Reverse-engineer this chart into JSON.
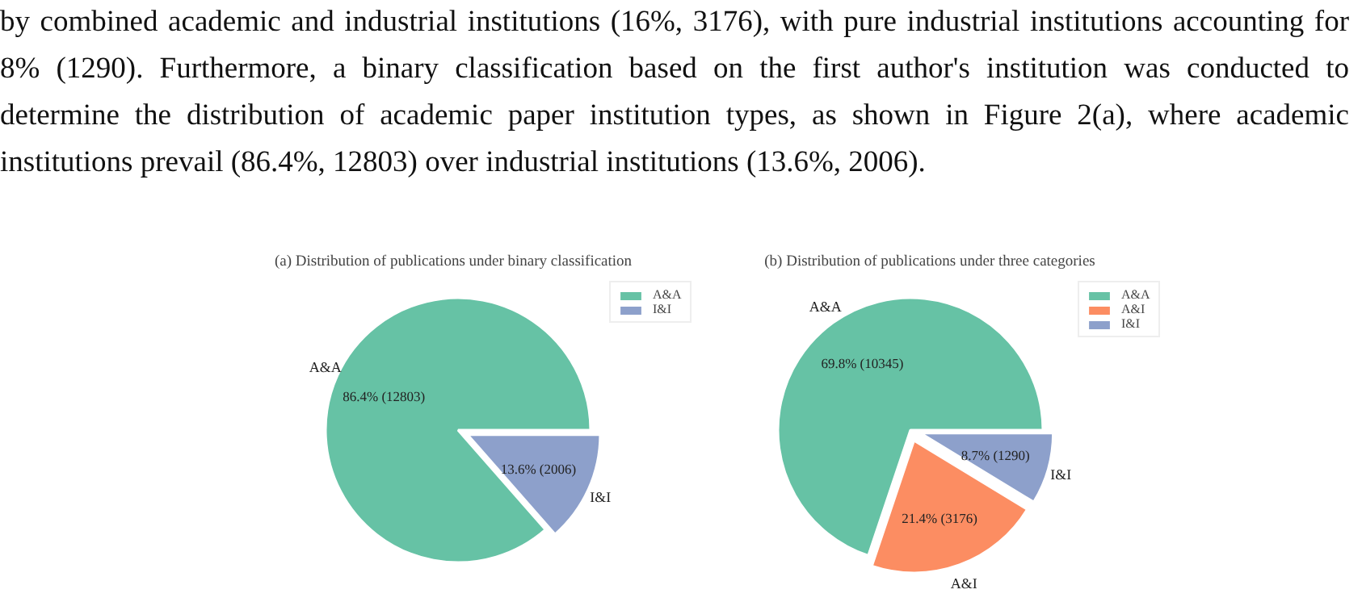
{
  "chart_data": [
    {
      "type": "pie",
      "title": "(a) Distribution of publications under binary classification",
      "categories": [
        "A&A",
        "I&I"
      ],
      "values": [
        12803,
        2006
      ],
      "colors": [
        "#66c2a5",
        "#8da0cb"
      ],
      "value_labels": [
        "86.4%  (12803)",
        "13.6%  (2006)"
      ],
      "legend": "top right",
      "annotations": [
        "by combined academic and industrial institutions (16%, 3176), with pure industrial institutions accounting for 8% (1290). Furthermore, a binary classification based on the first author's institution was conducted to determine the distribution of academic paper institution types, as shown in Figure 2(a), where academic institutions prevail (86.4%, 12803) over industrial institutions (13.6%, 2006)."
      ]
    },
    {
      "type": "pie",
      "title": "(b) Distribution of publications under three categories",
      "categories": [
        "A&A",
        "A&I",
        "I&I"
      ],
      "values": [
        10345,
        3176,
        1290
      ],
      "colors": [
        "#66c2a5",
        "#fc8d62",
        "#8da0cb"
      ],
      "value_labels": [
        "69.8%  (10345)",
        "21.4%  (3176)",
        "8.7%  (1290)"
      ],
      "legend": "top right"
    }
  ]
}
